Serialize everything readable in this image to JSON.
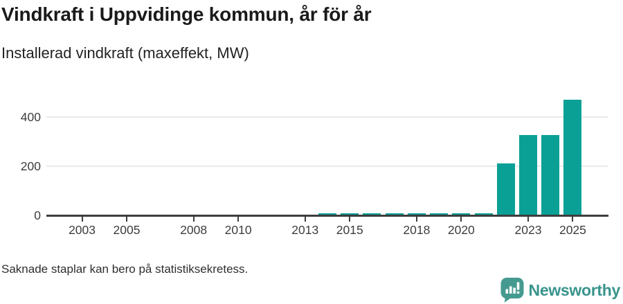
{
  "header": {
    "title": "Vindkraft i Uppvidinge kommun, år för år",
    "subtitle": "Installerad vindkraft (maxeffekt, MW)"
  },
  "footer": {
    "note": "Saknade staplar kan bero på statistiksekretess.",
    "brand": "Newsworthy"
  },
  "chart_data": {
    "type": "bar",
    "title": "Vindkraft i Uppvidinge kommun, år för år",
    "subtitle": "Installerad vindkraft (maxeffekt, MW)",
    "ylabel": "Installerad vindkraft (maxeffekt, MW)",
    "xlabel": "",
    "unit": "MW",
    "points": [
      {
        "year": 2014,
        "value": 8
      },
      {
        "year": 2015,
        "value": 8
      },
      {
        "year": 2016,
        "value": 8
      },
      {
        "year": 2017,
        "value": 8
      },
      {
        "year": 2018,
        "value": 8
      },
      {
        "year": 2019,
        "value": 8
      },
      {
        "year": 2020,
        "value": 8
      },
      {
        "year": 2021,
        "value": 8
      },
      {
        "year": 2022,
        "value": 210
      },
      {
        "year": 2023,
        "value": 325
      },
      {
        "year": 2024,
        "value": 325
      },
      {
        "year": 2025,
        "value": 470
      }
    ],
    "x_ticks": [
      2003,
      2005,
      2008,
      2010,
      2013,
      2015,
      2018,
      2020,
      2023,
      2025
    ],
    "y_ticks": [
      0,
      200,
      400
    ],
    "xlim": [
      2001.4,
      2026.6
    ],
    "ylim": [
      0,
      500
    ],
    "grid": "horizontal",
    "legend": "none",
    "bar_color": "#0aa096",
    "axis_color": "#3d3d3d",
    "grid_color": "#e9e9e9"
  },
  "logo": {
    "bubble_color": "#459a90",
    "glyph": "bar-chart-exclamation"
  }
}
